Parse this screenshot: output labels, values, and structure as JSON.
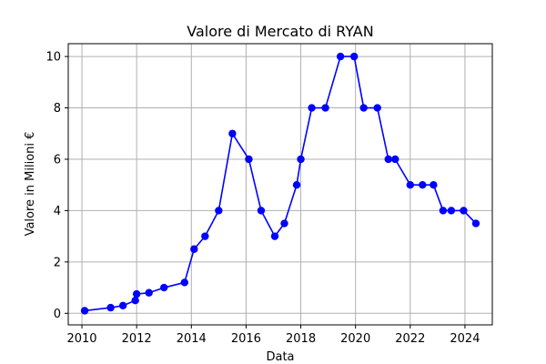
{
  "chart_data": {
    "type": "line",
    "title": "Valore di Mercato di RYAN",
    "xlabel": "Data",
    "ylabel": "Valore in Milioni €",
    "xlim": [
      2009.5,
      2025.0
    ],
    "ylim": [
      -0.45,
      10.5
    ],
    "xticks": [
      2010,
      2012,
      2014,
      2016,
      2018,
      2020,
      2022,
      2024
    ],
    "xtick_labels": [
      "2010",
      "2012",
      "2014",
      "2016",
      "2018",
      "2020",
      "2022",
      "2024"
    ],
    "yticks": [
      0,
      2,
      4,
      6,
      8,
      10
    ],
    "ytick_labels": [
      "0",
      "2",
      "4",
      "6",
      "8",
      "10"
    ],
    "grid": true,
    "legend": "none",
    "series": [
      {
        "color": "#0000ff",
        "marker": "circle",
        "x": [
          2010.1,
          2011.05,
          2011.5,
          2011.95,
          2012.0,
          2012.45,
          2013.0,
          2013.75,
          2014.1,
          2014.5,
          2015.0,
          2015.5,
          2016.1,
          2016.55,
          2017.05,
          2017.4,
          2017.85,
          2018.0,
          2018.4,
          2018.9,
          2019.45,
          2019.95,
          2020.3,
          2020.8,
          2021.2,
          2021.45,
          2022.0,
          2022.45,
          2022.85,
          2023.2,
          2023.5,
          2023.95,
          2024.4
        ],
        "y": [
          0.1,
          0.22,
          0.3,
          0.5,
          0.75,
          0.8,
          1.0,
          1.2,
          2.5,
          3.0,
          4.0,
          7.0,
          6.0,
          4.0,
          3.0,
          3.5,
          5.0,
          6.0,
          8.0,
          8.0,
          10.0,
          10.0,
          8.0,
          8.0,
          6.0,
          6.0,
          5.0,
          5.0,
          5.0,
          4.0,
          4.0,
          4.0,
          3.5
        ]
      }
    ]
  }
}
